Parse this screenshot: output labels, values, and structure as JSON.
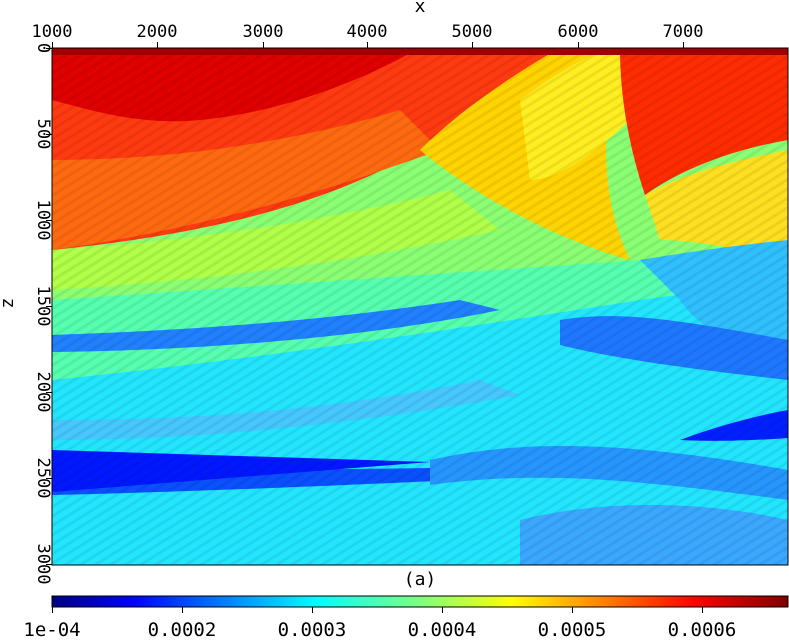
{
  "chart_data": {
    "type": "heatmap",
    "title": "",
    "xlabel": "x",
    "ylabel": "z",
    "caption": "(a)",
    "x_axis_position": "top",
    "xlim": [
      1000,
      7700
    ],
    "ylim": [
      0,
      3000
    ],
    "y_inverted": true,
    "x_ticks": [
      "1000",
      "2000",
      "3000",
      "4000",
      "5000",
      "6000",
      "7000"
    ],
    "y_ticks": [
      "0",
      "500",
      "1000",
      "1500",
      "2000",
      "2500",
      "3000"
    ],
    "colormap": "jet",
    "colorbar": {
      "position": "bottom",
      "range": [
        0.0001,
        0.000665
      ],
      "ticks": [
        "1e-04",
        "0.0002",
        "0.0003",
        "0.0004",
        "0.0005",
        "0.0006"
      ]
    },
    "description": "Layered velocity/slowness model with curved strata and faults; high values (red) near top-left, low values (blue) at depth"
  },
  "colors": {
    "background": "#ffffff",
    "axis": "#000000"
  }
}
